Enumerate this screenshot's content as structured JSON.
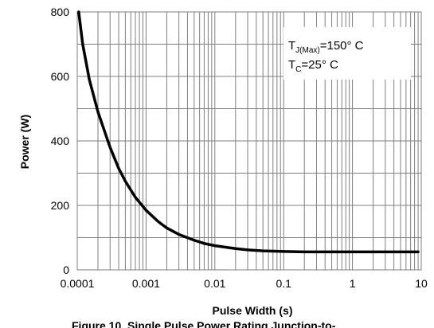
{
  "chart_data": {
    "type": "line",
    "xlabel": "Pulse Width (s)",
    "ylabel": "Power (W)",
    "x_scale": "log",
    "xlim": [
      0.0001,
      10
    ],
    "ylim": [
      0,
      800
    ],
    "x_ticks": [
      "0.0001",
      "0.001",
      "0.01",
      "0.1",
      "1",
      "10"
    ],
    "y_ticks": [
      "0",
      "200",
      "400",
      "600",
      "800"
    ],
    "grid": true,
    "legend_placement": "top-right",
    "annotation": {
      "line1": {
        "main": "T",
        "sub": "J(Max)",
        "rest": "=150° C"
      },
      "line2": {
        "main": "T",
        "sub": "C",
        "rest": "=25° C"
      }
    },
    "caption": "Figure 10. Single Pulse Power Rating Junction-to-",
    "series": [
      {
        "color": "#000000",
        "x": [
          0.000105,
          0.00012,
          0.00015,
          0.0002,
          0.0003,
          0.0004,
          0.0005,
          0.0007,
          0.001,
          0.0015,
          0.002,
          0.003,
          0.005,
          0.007,
          0.01,
          0.02,
          0.03,
          0.05,
          0.1,
          0.2,
          0.5,
          1,
          2,
          5,
          9
        ],
        "y": [
          800,
          700,
          590,
          490,
          380,
          315,
          275,
          225,
          185,
          150,
          130,
          110,
          92,
          82,
          75,
          66,
          62,
          59,
          57,
          56,
          56,
          56,
          56,
          56,
          56
        ]
      }
    ]
  }
}
